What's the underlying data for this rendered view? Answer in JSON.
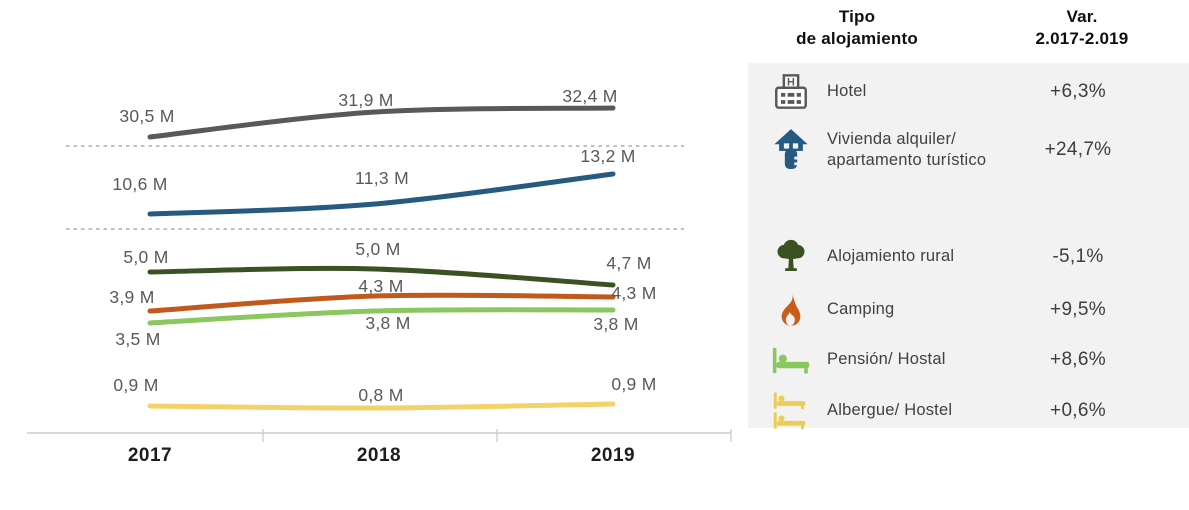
{
  "chart_data": {
    "type": "line",
    "title": "",
    "xlabel": "",
    "ylabel": "",
    "unit": "M",
    "categories": [
      "2017",
      "2018",
      "2019"
    ],
    "grid": false,
    "scale_break_separators": 2,
    "legend_position": "right-table",
    "series": [
      {
        "name": "Hotel",
        "color": "#58595b",
        "values": [
          30.5,
          31.9,
          32.4
        ],
        "labels": [
          "30,5 M",
          "31,9 M",
          "32,4 M"
        ]
      },
      {
        "name": "Vivienda alquiler/apartamento turístico",
        "color": "#275a81",
        "values": [
          10.6,
          11.3,
          13.2
        ],
        "labels": [
          "10,6 M",
          "11,3 M",
          "13,2 M"
        ]
      },
      {
        "name": "Alojamiento rural",
        "color": "#3a5121",
        "values": [
          5.0,
          5.0,
          4.7
        ],
        "labels": [
          "5,0 M",
          "5,0 M",
          "4,7 M"
        ]
      },
      {
        "name": "Camping",
        "color": "#c2591c",
        "values": [
          3.9,
          4.3,
          4.3
        ],
        "labels": [
          "3,9 M",
          "4,3 M",
          "4,3 M"
        ]
      },
      {
        "name": "Pensión/Hostal",
        "color": "#8bc75f",
        "values": [
          3.5,
          3.8,
          3.8
        ],
        "labels": [
          "3,5 M",
          "3,8 M",
          "3,8 M"
        ]
      },
      {
        "name": "Albergue/Hostel",
        "color": "#f3d26a",
        "values": [
          0.9,
          0.8,
          0.9
        ],
        "labels": [
          "0,9 M",
          "0,8 M",
          "0,9 M"
        ]
      }
    ]
  },
  "legend_table": {
    "header": {
      "type_line1": "Tipo",
      "type_line2": "de alojamiento",
      "var_line1": "Var.",
      "var_line2": "2.017-2.019"
    },
    "rows": [
      {
        "icon": "hotel-icon",
        "label": "Hotel",
        "label2": "",
        "variation": "+6,3%"
      },
      {
        "icon": "house-key-icon",
        "label": "Vivienda alquiler/",
        "label2": "apartamento turístico",
        "variation": "+24,7%"
      },
      {
        "icon": "tree-icon",
        "label": "Alojamiento rural",
        "label2": "",
        "variation": "-5,1%"
      },
      {
        "icon": "flame-icon",
        "label": "Camping",
        "label2": "",
        "variation": "+9,5%"
      },
      {
        "icon": "bed-icon",
        "label": "Pensión/ Hostal",
        "label2": "",
        "variation": "+8,6%"
      },
      {
        "icon": "bunk-bed-icon",
        "label": "Albergue/ Hostel",
        "label2": "",
        "variation": "+0,6%"
      }
    ]
  }
}
